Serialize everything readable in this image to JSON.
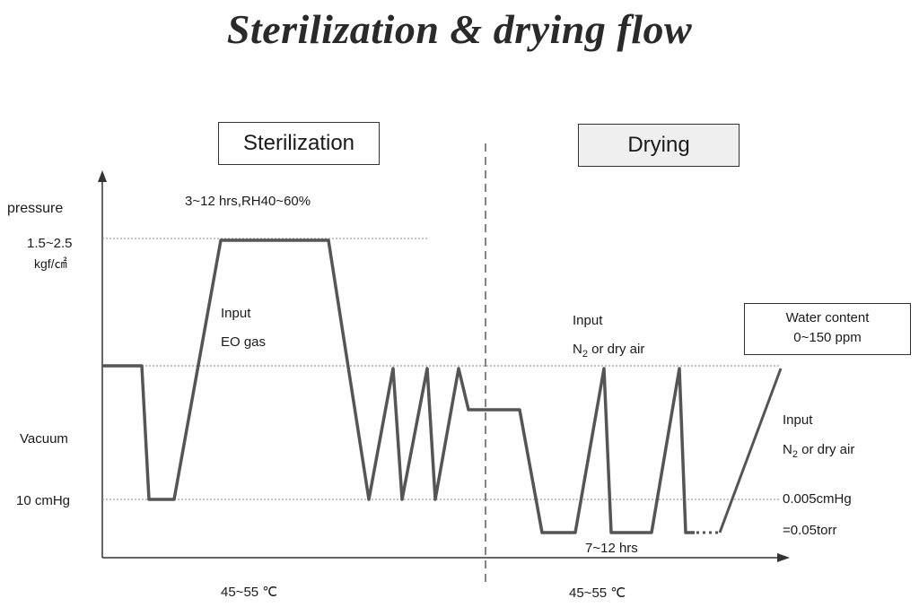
{
  "title": "Sterilization & drying flow",
  "stages": {
    "sterilization": "Sterilization",
    "drying": "Drying"
  },
  "labels": {
    "y_axis": "pressure",
    "pressure_top": "1.5~2.5",
    "pressure_top_unit": "kgf/㎠",
    "vacuum": "Vacuum",
    "cmhg": "10 cmHg",
    "ster_time": "3~12 hrs,RH40~60%",
    "input_eo_1": "Input",
    "input_eo_2": "EO gas",
    "input_n2_1": "Input",
    "input_n2_2_main": "N",
    "input_n2_2_sub": "2",
    "input_n2_2_rest": " or dry air",
    "input_n2b_1": "Input",
    "input_n2b_2_main": "N",
    "input_n2b_2_sub": "2",
    "input_n2b_2_rest": " or dry air",
    "water_1": "Water content",
    "water_2": "0~150 ppm",
    "vac_low_1": "0.005cmHg",
    "vac_low_2": "=0.05torr",
    "dry_time": "7~12 hrs",
    "temp_ster": "45~55 ℃",
    "temp_dry": "45~55 ℃"
  },
  "colors": {
    "curve": "#555555",
    "axis": "#333333",
    "guide": "#888888"
  }
}
